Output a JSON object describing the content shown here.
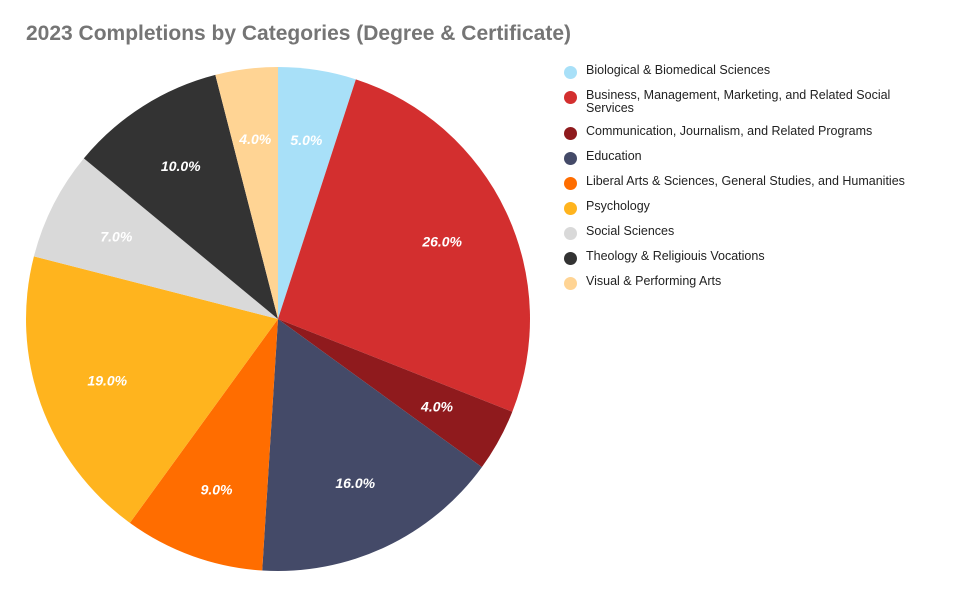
{
  "chart_data": {
    "type": "pie",
    "title": "2023 Completions by Categories (Degree & Certificate)",
    "start_angle_deg": 0,
    "direction": "clockwise",
    "legend_position": "right",
    "slices": [
      {
        "label": "Biological & Biomedical Sciences",
        "value": 5.0,
        "display": "5.0%",
        "color": "#a8e0f8"
      },
      {
        "label": "Business, Management, Marketing, and Related Social Services",
        "value": 26.0,
        "display": "26.0%",
        "color": "#d32f2f"
      },
      {
        "label": "Communication, Journalism, and Related Programs",
        "value": 4.0,
        "display": "4.0%",
        "color": "#8f1a1d"
      },
      {
        "label": "Education",
        "value": 16.0,
        "display": "16.0%",
        "color": "#444a68"
      },
      {
        "label": "Liberal Arts & Sciences, General Studies, and Humanities",
        "value": 9.0,
        "display": "9.0%",
        "color": "#ff6d00"
      },
      {
        "label": "Psychology",
        "value": 19.0,
        "display": "19.0%",
        "color": "#ffb41e"
      },
      {
        "label": "Social Sciences",
        "value": 7.0,
        "display": "7.0%",
        "color": "#d9d9d9"
      },
      {
        "label": "Theology & Religiouis Vocations",
        "value": 10.0,
        "display": "10.0%",
        "color": "#333333"
      },
      {
        "label": "Visual & Performing Arts",
        "value": 4.0,
        "display": "4.0%",
        "color": "#ffd494"
      }
    ]
  }
}
